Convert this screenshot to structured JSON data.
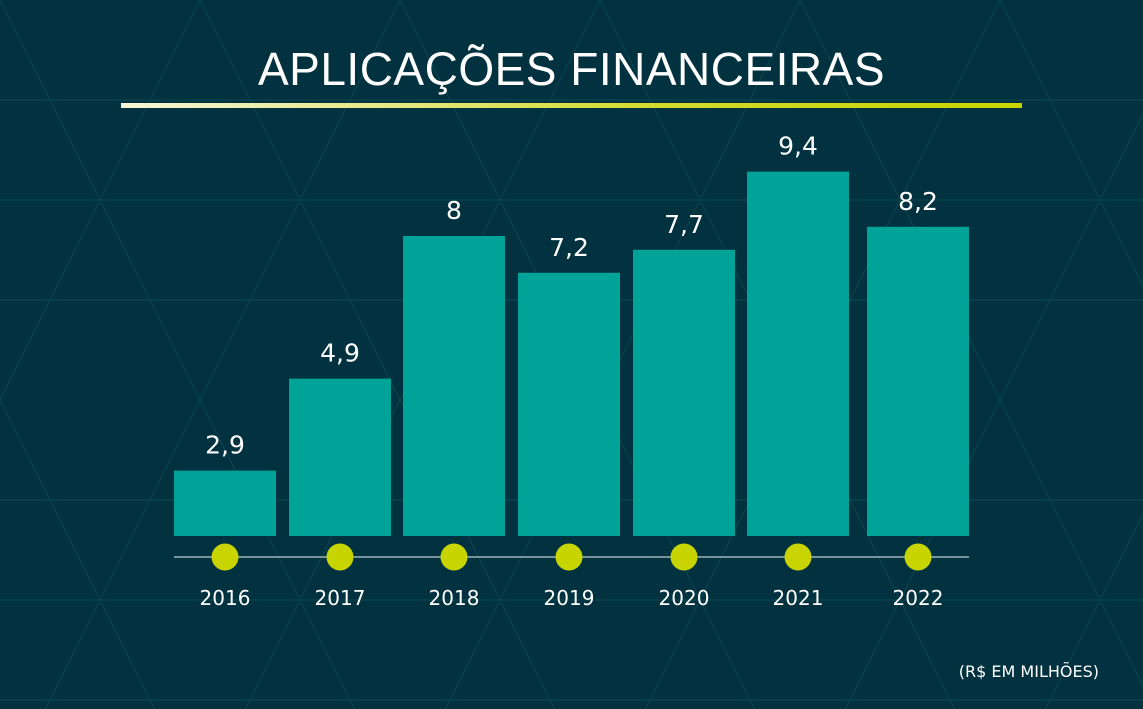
{
  "chart_data": {
    "type": "bar",
    "title": "APLICAÇÕES FINANCEIRAS",
    "unit_label": "(R$ EM MILHÕES)",
    "categories": [
      "2016",
      "2017",
      "2018",
      "2019",
      "2020",
      "2021",
      "2022"
    ],
    "values": [
      2.9,
      4.9,
      8,
      7.2,
      7.7,
      9.4,
      8.2
    ],
    "data_labels": [
      "2,9",
      "4,9",
      "8",
      "7,2",
      "7,7",
      "9,4",
      "8,2"
    ],
    "xlabel": "",
    "ylabel": "",
    "grid": false,
    "colors": {
      "bar": "#00a398",
      "dot": "#c8d400",
      "background": "#02323f",
      "axis": "#9fb3b8"
    }
  }
}
